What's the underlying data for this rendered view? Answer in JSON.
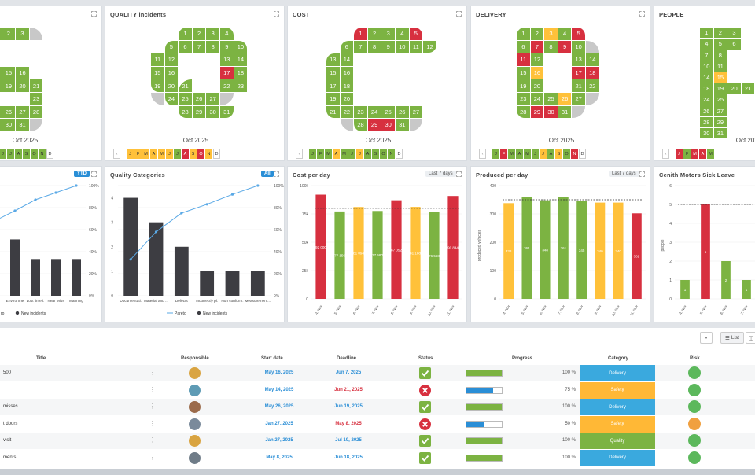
{
  "colors": {
    "green": "#7cb342",
    "red": "#d7303f",
    "yellow": "#ffc13a",
    "blue": "#2a8ed6",
    "grey": "#c8c8c8",
    "dark": "#3d3d42"
  },
  "panels": {
    "safety": {
      "title": "",
      "month": "Oct 2025",
      "months": [
        "J",
        "J",
        "A",
        "S",
        "O",
        "N",
        "D"
      ]
    },
    "quality": {
      "title": "QUALITY incidents",
      "month": "Oct 2025",
      "months": [
        "J",
        "F",
        "M",
        "A",
        "M",
        "J",
        "J",
        "A",
        "S",
        "O",
        "N",
        "D"
      ]
    },
    "cost": {
      "title": "COST",
      "month": "Oct 2025",
      "months": [
        "J",
        "F",
        "M",
        "A",
        "M",
        "J",
        "J",
        "A",
        "S",
        "O",
        "N",
        "D"
      ]
    },
    "delivery": {
      "title": "DELIVERY",
      "month": "Oct 2025",
      "months": [
        "J",
        "F",
        "M",
        "A",
        "M",
        "J",
        "J",
        "A",
        "S",
        "O",
        "N",
        "D"
      ]
    },
    "people": {
      "title": "PEOPLE",
      "month": "Oct 2025",
      "months": [
        "J",
        "F",
        "M",
        "A",
        "M"
      ]
    }
  },
  "charts": {
    "safety_chart": {
      "title": "",
      "button": "YTD",
      "legend": "New incidents",
      "legend_partial": "ro"
    },
    "quality_cat": {
      "title": "Quality Categories",
      "button": "All",
      "legend_pareto": "Pareto",
      "legend_new": "New incidents"
    },
    "cost_day": {
      "title": "Cost per day",
      "button": "Last 7 days"
    },
    "produced_day": {
      "title": "Produced per day",
      "button": "Last 7 days",
      "ylabel": "produced vehicles"
    },
    "sick_leave": {
      "title": "Cenith Motors Sick Leave",
      "ylabel": "people"
    }
  },
  "chart_data": [
    {
      "type": "bar",
      "title": "Safety incidents (partial)",
      "categories": [
        "Environme",
        "Lost time i.",
        "Near Miss",
        "Manning"
      ],
      "values": [
        2.3,
        1.5,
        1.5,
        1.5
      ],
      "pareto_axis": [
        "0%",
        "20%",
        "40%",
        "60%",
        "80%",
        "100%"
      ]
    },
    {
      "type": "bar",
      "title": "Quality Categories",
      "categories": [
        "Documentati.",
        "Material and ...",
        "Defects",
        "Incorrectly pl.",
        "Non conform.",
        "Measurement..."
      ],
      "values": [
        4,
        3,
        2,
        1,
        1,
        1
      ],
      "pareto": [
        33,
        58,
        75,
        83,
        92,
        100
      ],
      "yticks": [
        "0",
        "1",
        "2",
        "3",
        "4"
      ],
      "pareto_axis": [
        "0%",
        "20%",
        "40%",
        "60%",
        "80%",
        "100%"
      ],
      "ylim": [
        0,
        4.5
      ]
    },
    {
      "type": "bar",
      "title": "Cost per day",
      "categories": [
        "4. Nov",
        "5. Nov",
        "6. Nov",
        "7. Nov",
        "8. Nov",
        "9. Nov",
        "10. Nov",
        "11. Nov"
      ],
      "values": [
        92000,
        77156,
        81094,
        77580,
        87052,
        81188,
        76568,
        90844
      ],
      "labels": [
        "92 000",
        "77 156",
        "81 094",
        "77 580",
        "87 052",
        "81 188",
        "76 568",
        "90 844"
      ],
      "colors": [
        "red",
        "green",
        "yellow",
        "green",
        "red",
        "yellow",
        "green",
        "red"
      ],
      "target": 80000,
      "yticks": [
        "0",
        "25k",
        "50k",
        "75k",
        "100k"
      ],
      "ylim": [
        0,
        100000
      ]
    },
    {
      "type": "bar",
      "title": "Produced per day",
      "categories": [
        "4. Nov",
        "5. Nov",
        "6. Nov",
        "7. Nov",
        "8. Nov",
        "9. Nov",
        "10. Nov",
        "11. Nov"
      ],
      "values": [
        338,
        361,
        348,
        361,
        345,
        340,
        340,
        302
      ],
      "colors": [
        "yellow",
        "green",
        "green",
        "green",
        "green",
        "yellow",
        "yellow",
        "red"
      ],
      "target": 350,
      "yticks": [
        "0",
        "100",
        "200",
        "300",
        "400"
      ],
      "ylim": [
        0,
        400
      ]
    },
    {
      "type": "bar",
      "title": "Cenith Motors Sick Leave",
      "categories": [
        "4. Nov",
        "5. Nov",
        "6. Nov",
        "7. Nov"
      ],
      "values": [
        1,
        5,
        2,
        1
      ],
      "colors": [
        "green",
        "red",
        "green",
        "green"
      ],
      "target": 5,
      "yticks": [
        "0",
        "1",
        "2",
        "3",
        "4",
        "5",
        "6"
      ],
      "ylim": [
        0,
        6
      ]
    }
  ],
  "table": {
    "view_list": "List",
    "headers": {
      "title": "Title",
      "responsible": "Responsible",
      "start": "Start date",
      "deadline": "Deadline",
      "status": "Status",
      "progress": "Progress",
      "category": "Category",
      "risk": "Risk"
    },
    "rows": [
      {
        "title": "500",
        "start": "May 16, 2025",
        "deadline": "Jun 7, 2025",
        "deadline_late": false,
        "status": "done",
        "progress": 1.0,
        "progress_label": "100 %",
        "category": "Delivery",
        "risk": "green"
      },
      {
        "title": "",
        "start": "May 14, 2025",
        "deadline": "Jun 21, 2025",
        "deadline_late": true,
        "status": "failed",
        "progress": 0.75,
        "progress_label": "75 %",
        "category": "Safety",
        "risk": "green"
      },
      {
        "title": "misses",
        "start": "May 26, 2025",
        "deadline": "Jun 19, 2025",
        "deadline_late": false,
        "status": "done",
        "progress": 1.0,
        "progress_label": "100 %",
        "category": "Delivery",
        "risk": "green"
      },
      {
        "title": "t doors",
        "start": "Jan 27, 2025",
        "deadline": "May 8, 2025",
        "deadline_late": true,
        "status": "failed",
        "progress": 0.5,
        "progress_label": "50 %",
        "category": "Safety",
        "risk": "orange"
      },
      {
        "title": "visit",
        "start": "Jan 27, 2025",
        "deadline": "Jul 19, 2025",
        "deadline_late": false,
        "status": "done",
        "progress": 1.0,
        "progress_label": "100 %",
        "category": "Quality",
        "risk": "green"
      },
      {
        "title": "ments",
        "start": "May 8, 2025",
        "deadline": "Jun 18, 2025",
        "deadline_late": false,
        "status": "done",
        "progress": 1.0,
        "progress_label": "100 %",
        "category": "Delivery",
        "risk": "green"
      }
    ]
  }
}
